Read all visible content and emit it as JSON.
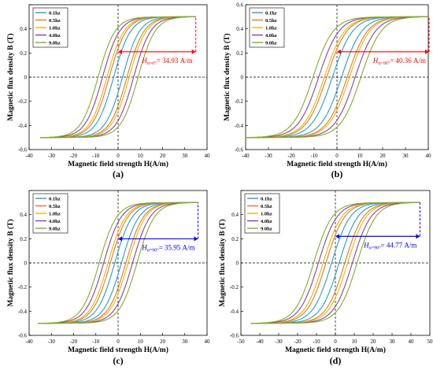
{
  "figure": {
    "panels": [
      "(a)",
      "(b)",
      "(c)",
      "(d)"
    ]
  },
  "chart_data": [
    {
      "type": "line",
      "panel_label": "(a)",
      "title": "",
      "xlabel": "Magnetic field strength H(A/m)",
      "ylabel": "Magnetic flux density B (T)",
      "xlim": [
        -40,
        40
      ],
      "ylim": [
        -0.6,
        0.6
      ],
      "xticks": [
        -40,
        -30,
        -20,
        -10,
        0,
        10,
        20,
        30,
        40
      ],
      "yticks": [
        -0.6,
        -0.4,
        -0.2,
        0,
        0.2,
        0.4,
        0.6
      ],
      "ytick_labels": [
        "-0.6",
        "-0.4",
        "-0.2",
        "0",
        "0.2",
        "0.4",
        ""
      ],
      "legend_position": "top-left",
      "annotation": {
        "text_main": "H",
        "text_sub": "α=0°",
        "text_rest": "= 34.93 A/m",
        "color": "#ff0000",
        "h_max": 34.93,
        "b_level": 0.21
      },
      "series": [
        {
          "name": "0.1hz",
          "color": "#1f9fd0",
          "h_max": 34.93,
          "b_max": 0.5,
          "hc": 2.0,
          "br": 0.21
        },
        {
          "name": "0.5hz",
          "color": "#e87722",
          "h_max": 34.93,
          "b_max": 0.5,
          "hc": 4.0,
          "br": 0.25
        },
        {
          "name": "1.0hz",
          "color": "#e6b800",
          "h_max": 34.93,
          "b_max": 0.5,
          "hc": 5.0,
          "br": 0.27
        },
        {
          "name": "4.0hz",
          "color": "#8a3fa8",
          "h_max": 34.93,
          "b_max": 0.5,
          "hc": 7.0,
          "br": 0.29
        },
        {
          "name": "9.0hz",
          "color": "#7fae2a",
          "h_max": 34.93,
          "b_max": 0.5,
          "hc": 9.0,
          "br": 0.31
        }
      ]
    },
    {
      "type": "line",
      "panel_label": "(b)",
      "title": "",
      "xlabel": "Magnetic field strength H(A/m)",
      "ylabel": "Magnetic flux density B (T)",
      "xlim": [
        -40,
        40
      ],
      "ylim": [
        -0.6,
        0.6
      ],
      "xticks": [
        -40,
        -30,
        -20,
        -10,
        0,
        10,
        20,
        30,
        40
      ],
      "yticks": [
        -0.6,
        -0.4,
        -0.2,
        0,
        0.2,
        0.4,
        0.6
      ],
      "ytick_labels": [
        "-0.6",
        "-0.4",
        "-0.2",
        "0",
        "0.2",
        "0.4",
        "0.6"
      ],
      "legend_position": "top-left",
      "annotation": {
        "text_main": "H",
        "text_sub": "α=90°",
        "text_rest": "= 40.36 A/m",
        "color": "#ff0000",
        "h_max": 40.36,
        "b_level": 0.21
      },
      "series": [
        {
          "name": "0.1hz",
          "color": "#1f9fd0",
          "h_max": 40.36,
          "b_max": 0.5,
          "hc": 2.0,
          "br": 0.2
        },
        {
          "name": "0.5hz",
          "color": "#e87722",
          "h_max": 40.36,
          "b_max": 0.5,
          "hc": 4.5,
          "br": 0.25
        },
        {
          "name": "1.0hz",
          "color": "#e6b800",
          "h_max": 40.36,
          "b_max": 0.5,
          "hc": 5.5,
          "br": 0.27
        },
        {
          "name": "4.0hz",
          "color": "#8a3fa8",
          "h_max": 40.36,
          "b_max": 0.5,
          "hc": 8.0,
          "br": 0.29
        },
        {
          "name": "9.0hz",
          "color": "#7fae2a",
          "h_max": 40.36,
          "b_max": 0.5,
          "hc": 10.5,
          "br": 0.31
        }
      ]
    },
    {
      "type": "line",
      "panel_label": "(c)",
      "title": "",
      "xlabel": "Magnetic field strength H(A/m)",
      "ylabel": "Magnetic flux density B (T)",
      "xlim": [
        -40,
        40
      ],
      "ylim": [
        -0.6,
        0.6
      ],
      "xticks": [
        -40,
        -30,
        -20,
        -10,
        0,
        10,
        20,
        30,
        40
      ],
      "yticks": [
        -0.6,
        -0.4,
        -0.2,
        0,
        0.2,
        0.4,
        0.6
      ],
      "ytick_labels": [
        "-0.6",
        "-0.4",
        "-0.2",
        "0",
        "0.2",
        "0.4",
        ""
      ],
      "legend_position": "top-left",
      "annotation": {
        "text_main": "H",
        "text_sub": "α=90°",
        "text_rest": "= 35.95 A/m",
        "color": "#0000ff",
        "h_max": 35.95,
        "b_level": 0.2
      },
      "series": [
        {
          "name": "0.1hz",
          "color": "#1f9fd0",
          "h_max": 35.95,
          "b_max": 0.5,
          "hc": 1.5,
          "br": 0.16
        },
        {
          "name": "0.5hz",
          "color": "#e87722",
          "h_max": 35.95,
          "b_max": 0.5,
          "hc": 3.5,
          "br": 0.21
        },
        {
          "name": "1.0hz",
          "color": "#e6b800",
          "h_max": 35.95,
          "b_max": 0.5,
          "hc": 4.5,
          "br": 0.23
        },
        {
          "name": "4.0hz",
          "color": "#8a3fa8",
          "h_max": 35.95,
          "b_max": 0.5,
          "hc": 6.5,
          "br": 0.26
        },
        {
          "name": "9.0hz",
          "color": "#7fae2a",
          "h_max": 35.95,
          "b_max": 0.5,
          "hc": 8.5,
          "br": 0.28
        }
      ]
    },
    {
      "type": "line",
      "panel_label": "(d)",
      "title": "",
      "xlabel": "Magnetic field strength H(A/m)",
      "ylabel": "Magnetic flux density B (T)",
      "xlim": [
        -50,
        50
      ],
      "ylim": [
        -0.6,
        0.6
      ],
      "xticks": [
        -50,
        -40,
        -30,
        -20,
        -10,
        0,
        10,
        20,
        30,
        40,
        50
      ],
      "yticks": [
        -0.6,
        -0.4,
        -0.2,
        0,
        0.2,
        0.4,
        0.6
      ],
      "ytick_labels": [
        "-0.6",
        "-0.4",
        "-0.2",
        "0",
        "0.2",
        "0.4",
        ""
      ],
      "legend_position": "top-left",
      "annotation": {
        "text_main": "H",
        "text_sub": "α=90°",
        "text_rest": "= 44.77 A/m",
        "color": "#0000ff",
        "h_max": 44.77,
        "b_level": 0.22
      },
      "series": [
        {
          "name": "0.1hz",
          "color": "#1f9fd0",
          "h_max": 44.77,
          "b_max": 0.5,
          "hc": 2.0,
          "br": 0.2
        },
        {
          "name": "0.5hz",
          "color": "#e87722",
          "h_max": 44.77,
          "b_max": 0.5,
          "hc": 5.0,
          "br": 0.23
        },
        {
          "name": "1.0hz",
          "color": "#e6b800",
          "h_max": 44.77,
          "b_max": 0.5,
          "hc": 6.5,
          "br": 0.25
        },
        {
          "name": "4.0hz",
          "color": "#8a3fa8",
          "h_max": 44.77,
          "b_max": 0.5,
          "hc": 9.0,
          "br": 0.27
        },
        {
          "name": "9.0hz",
          "color": "#7fae2a",
          "h_max": 44.77,
          "b_max": 0.5,
          "hc": 11.5,
          "br": 0.29
        }
      ]
    }
  ]
}
